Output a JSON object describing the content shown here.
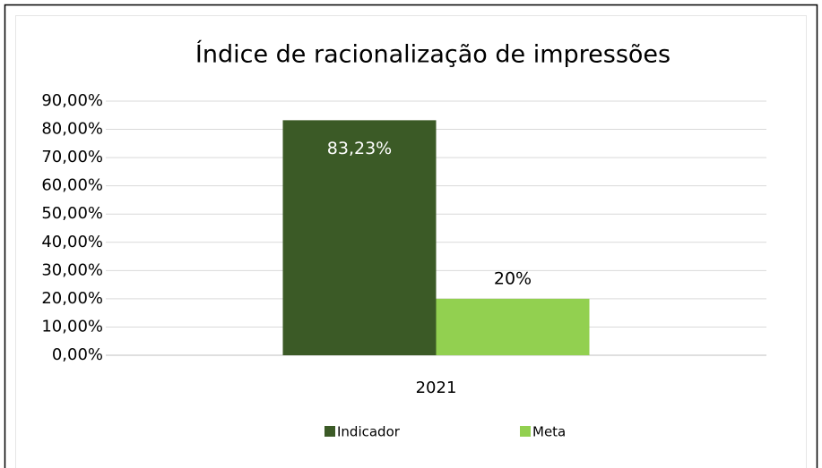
{
  "chart_data": {
    "type": "bar",
    "title": "Índice de racionalização de impressões",
    "categories": [
      "2021"
    ],
    "series": [
      {
        "name": "Indicador",
        "color": "#3b5a26",
        "values": [
          83.23
        ],
        "value_labels": [
          "83,23%"
        ],
        "label_color": "#ffffff"
      },
      {
        "name": "Meta",
        "color": "#92d050",
        "values": [
          20
        ],
        "value_labels": [
          "20%"
        ],
        "label_color": "#000000"
      }
    ],
    "ylim": [
      0,
      90
    ],
    "yticks": [
      {
        "value": 0,
        "label": "0,00%"
      },
      {
        "value": 10,
        "label": "10,00%"
      },
      {
        "value": 20,
        "label": "20,00%"
      },
      {
        "value": 30,
        "label": "30,00%"
      },
      {
        "value": 40,
        "label": "40,00%"
      },
      {
        "value": 50,
        "label": "50,00%"
      },
      {
        "value": 60,
        "label": "60,00%"
      },
      {
        "value": 70,
        "label": "70,00%"
      },
      {
        "value": 80,
        "label": "80,00%"
      },
      {
        "value": 90,
        "label": "90,00%"
      }
    ],
    "grid": true,
    "legend": "bottom"
  }
}
